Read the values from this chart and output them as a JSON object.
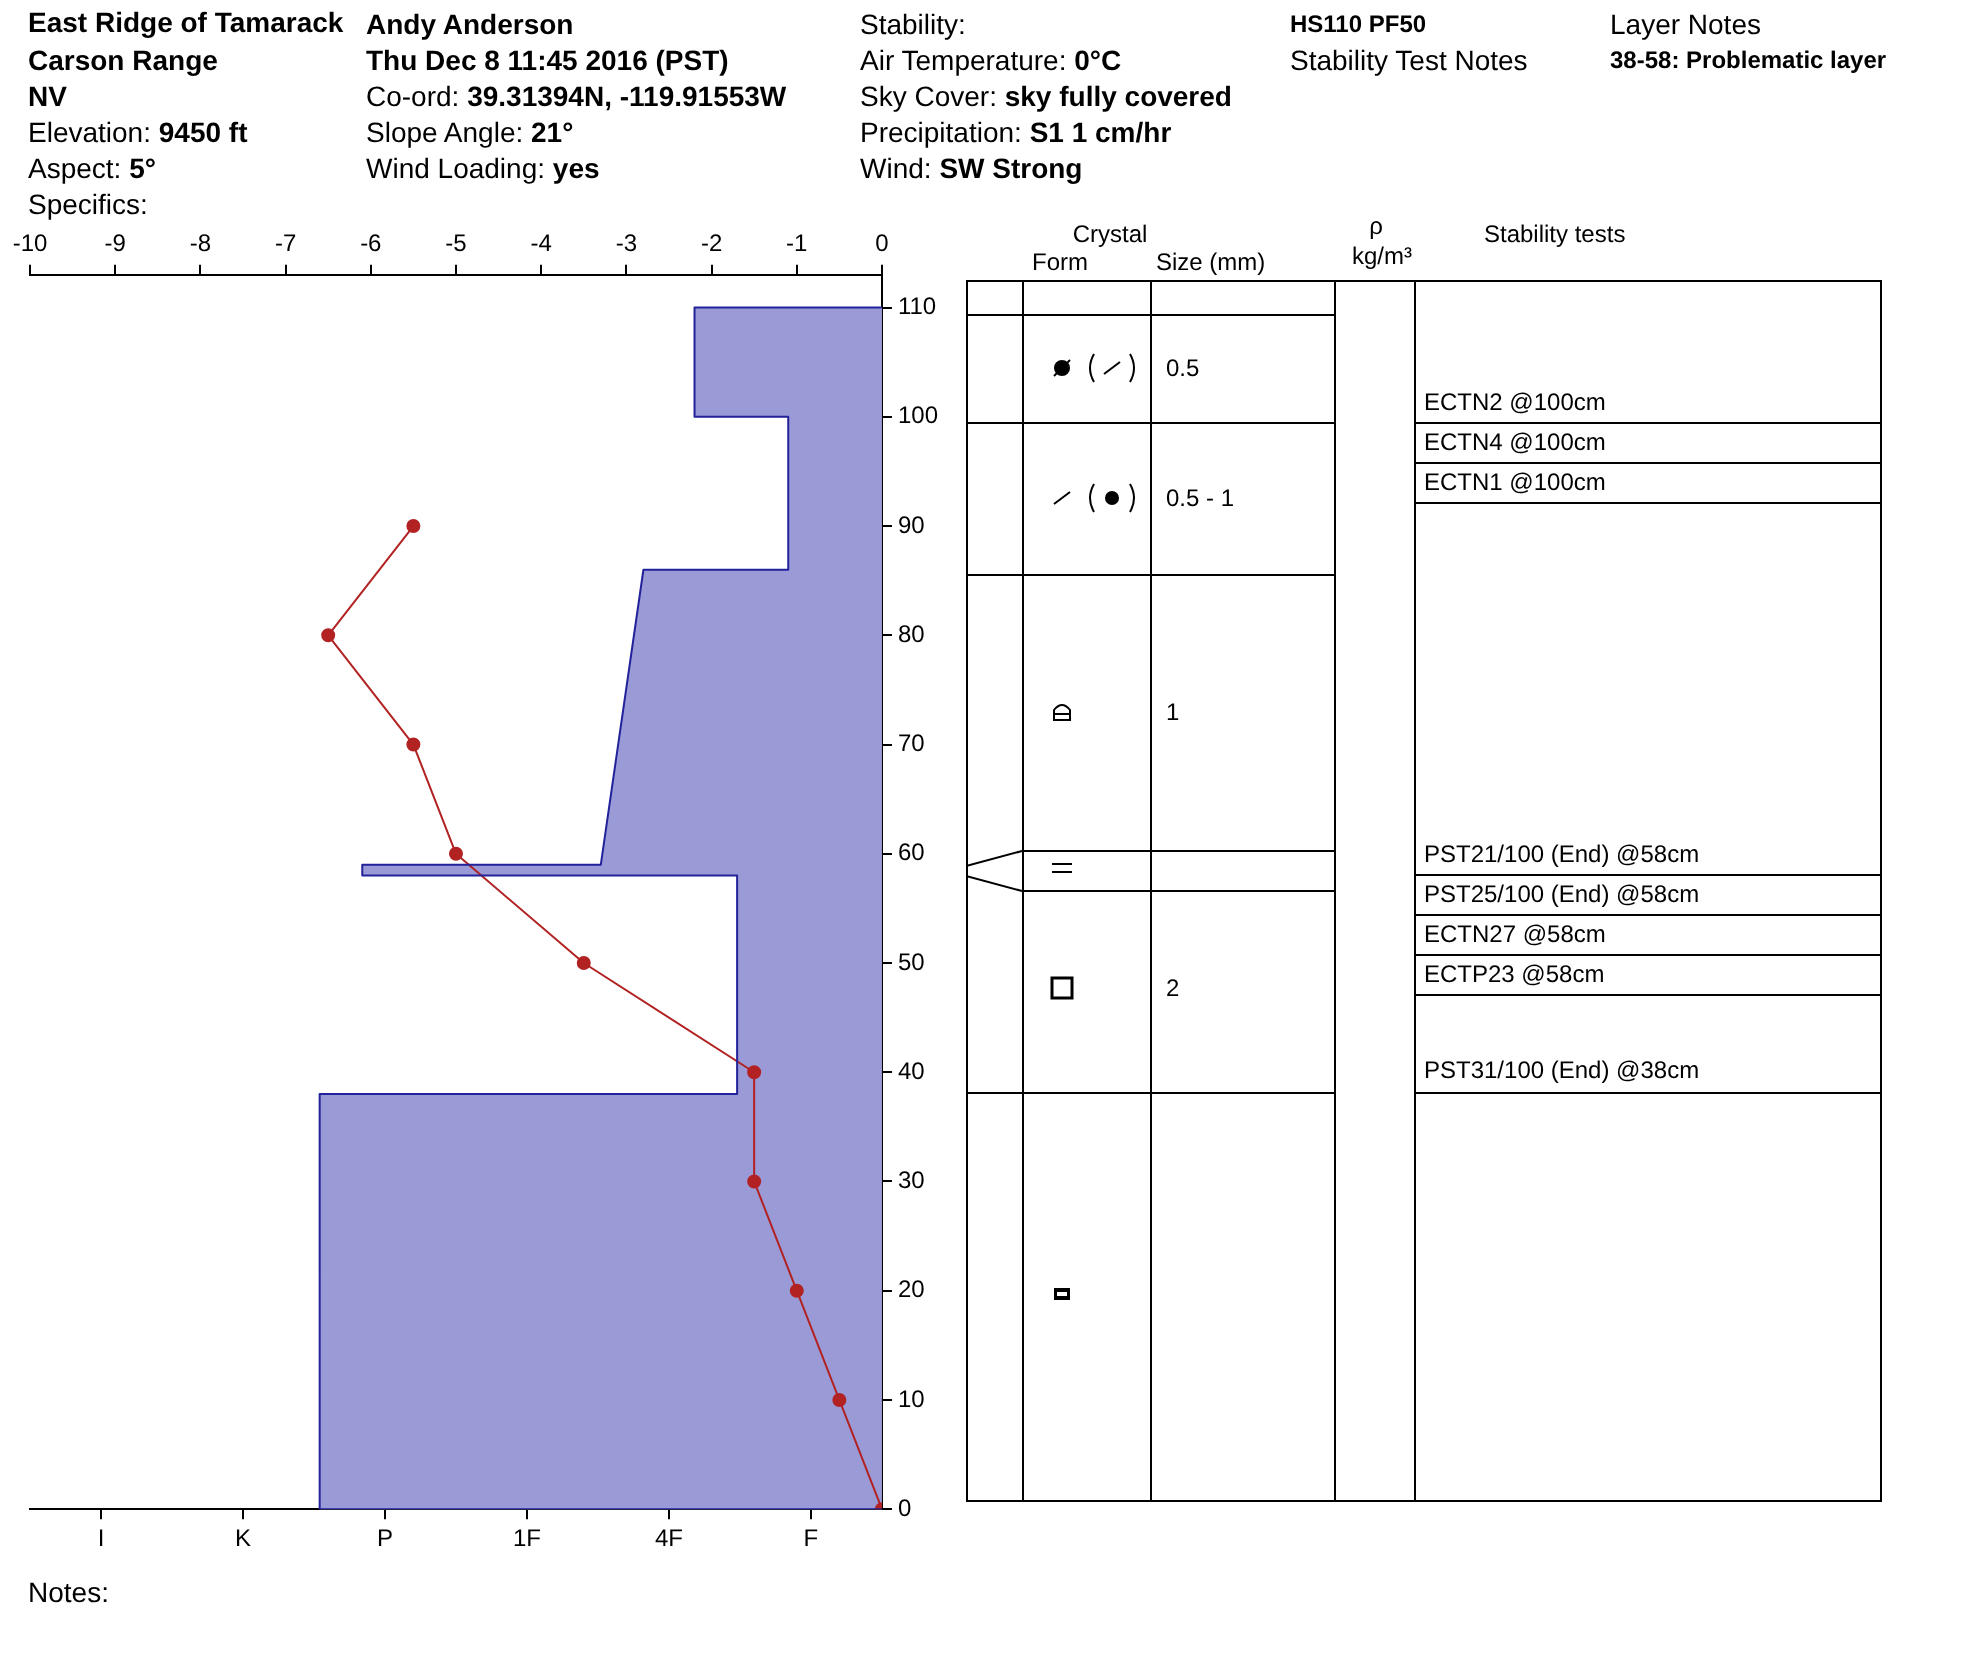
{
  "chart_data": [
    {
      "type": "line",
      "title": "East Ridge of Tamarack",
      "annotations": [
        "Andy Anderson",
        "Carson Range",
        "NV",
        "Elevation: 9450 ft",
        "Aspect: 5°",
        "Specifics:",
        "Thu Dec 8 11:45 2016 (PST)",
        "Co-ord: 39.31394N, -119.91553W",
        "Slope Angle: 21°",
        "Wind Loading: yes",
        "Stability:",
        "Air Temperature: 0°C",
        "Sky Cover: sky fully covered",
        "Precipitation: S1 1 cm/hr",
        "Wind: SW Strong",
        "HS110 PF50",
        "Stability Test Notes",
        "Layer Notes",
        "38-58: Problematic layer",
        "Notes:"
      ],
      "categories": [
        "I",
        "K",
        "P",
        "1F",
        "4F",
        "F"
      ],
      "x2lim": [
        -10,
        0
      ],
      "x2ticks": [
        -10,
        -9,
        -8,
        -7,
        -6,
        -5,
        -4,
        -3,
        -2,
        -1,
        0
      ],
      "ylim": [
        0,
        113
      ],
      "yticks": [
        0,
        10,
        20,
        30,
        40,
        50,
        60,
        70,
        80,
        90,
        100,
        110
      ],
      "grid": false,
      "legend": false,
      "series": [
        {
          "type": "area",
          "axis": "x2",
          "color": "#9a9ad6",
          "marker": "none",
          "x": [
            0,
            -6.6,
            -6.6,
            -1.7,
            -1.7,
            -6.1,
            -6.1,
            -3.3,
            -2.8,
            -1.1,
            -1.1,
            -2.2,
            -2.2,
            0
          ],
          "values": [
            0,
            0,
            38,
            38,
            58,
            58,
            59,
            59,
            86,
            86,
            100,
            100,
            110,
            110
          ]
        },
        {
          "type": "line",
          "axis": "x2",
          "color": "#b22222",
          "marker": "circle",
          "x": [
            0,
            -0.5,
            -1.0,
            -1.5,
            -1.5,
            -3.5,
            -5.0,
            -5.5,
            -6.5,
            -5.5
          ],
          "values": [
            0,
            10,
            20,
            30,
            40,
            50,
            60,
            70,
            80,
            90
          ]
        }
      ]
    },
    {
      "type": "other",
      "annotations": [
        "Crystal",
        "Form",
        "Size (mm)",
        "ρ",
        "kg/m³",
        "Stability tests",
        "0.5",
        "0.5 - 1",
        "1",
        "2",
        "ECTN2 @100cm",
        "ECTN4 @100cm",
        "ECTN1 @100cm",
        "PST21/100 (End) @58cm",
        "PST25/100 (End) @58cm",
        "ECTN27 @58cm",
        "ECTP23 @58cm",
        "PST31/100 (End) @38cm"
      ]
    }
  ]
}
